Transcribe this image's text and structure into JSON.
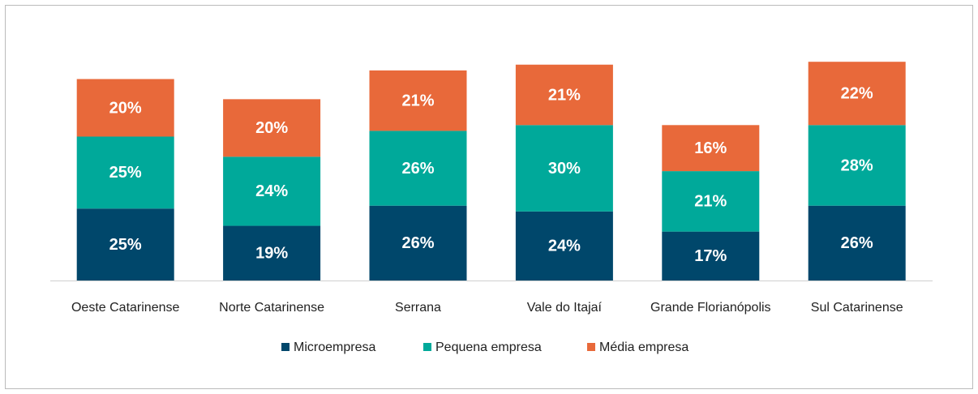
{
  "chart_data": {
    "type": "stacked_bar",
    "categories": [
      "Oeste Catarinense",
      "Norte Catarinense",
      "Serrana",
      "Vale do Itajaí",
      "Grande Florianópolis",
      "Sul Catarinense"
    ],
    "series": [
      {
        "name": "Microempresa",
        "color": "#00476b",
        "values": [
          25,
          19,
          26,
          24,
          17,
          26
        ],
        "value_labels": [
          "25%",
          "19%",
          "26%",
          "24%",
          "17%",
          "26%"
        ]
      },
      {
        "name": "Pequena empresa",
        "color": "#00a99a",
        "values": [
          25,
          24,
          26,
          30,
          21,
          28
        ],
        "value_labels": [
          "25%",
          "24%",
          "26%",
          "30%",
          "21%",
          "28%"
        ]
      },
      {
        "name": "Média empresa",
        "color": "#e8693a",
        "values": [
          20,
          20,
          21,
          21,
          16,
          22
        ],
        "value_labels": [
          "20%",
          "20%",
          "21%",
          "21%",
          "16%",
          "22%"
        ]
      }
    ],
    "legend": "bottom"
  }
}
